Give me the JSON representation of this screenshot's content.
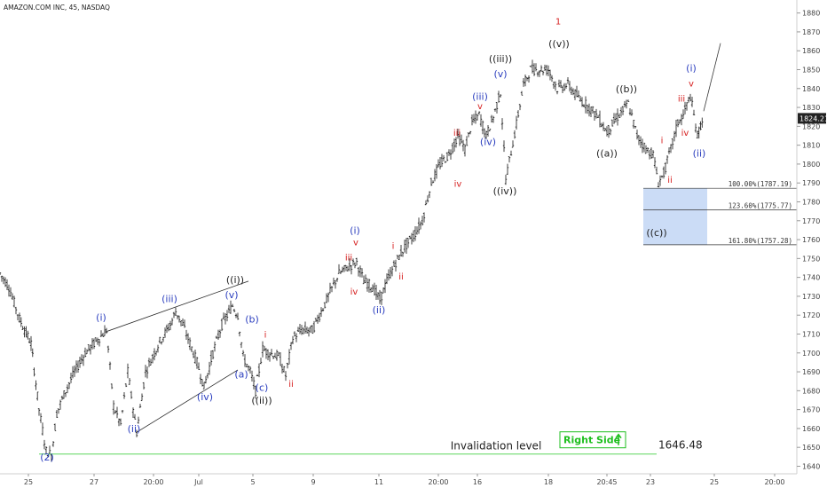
{
  "header": {
    "title": "AMAZON.COM INC, 45, NASDAQ"
  },
  "chart_data": {
    "type": "candlestick",
    "y_axis": {
      "ylim": [
        1636,
        1885
      ],
      "ticks": [
        1640,
        1650,
        1660,
        1670,
        1680,
        1690,
        1700,
        1710,
        1720,
        1730,
        1740,
        1750,
        1760,
        1770,
        1780,
        1790,
        1800,
        1810,
        1820,
        1830,
        1840,
        1850,
        1860,
        1870,
        1880
      ]
    },
    "x_axis": {
      "labels": [
        "25",
        "27",
        "20:00",
        "Jul",
        "5",
        "9",
        "11",
        "20:00",
        "16",
        "18",
        "20:45",
        "23",
        "25",
        "20:00"
      ],
      "label_x": [
        32,
        106,
        173,
        224,
        285,
        353,
        427,
        494,
        538,
        618,
        684,
        733,
        805,
        873
      ]
    },
    "last_price": "1824.21",
    "last_price_value": 1824.21,
    "price_path": [
      [
        0,
        1742
      ],
      [
        10,
        1735
      ],
      [
        22,
        1718
      ],
      [
        35,
        1705
      ],
      [
        44,
        1670
      ],
      [
        52,
        1648
      ],
      [
        58,
        1646
      ],
      [
        64,
        1668
      ],
      [
        72,
        1678
      ],
      [
        84,
        1690
      ],
      [
        96,
        1700
      ],
      [
        112,
        1708
      ],
      [
        120,
        1712
      ],
      [
        128,
        1672
      ],
      [
        136,
        1662
      ],
      [
        144,
        1690
      ],
      [
        154,
        1658
      ],
      [
        164,
        1690
      ],
      [
        180,
        1706
      ],
      [
        192,
        1715
      ],
      [
        198,
        1722
      ],
      [
        206,
        1715
      ],
      [
        214,
        1705
      ],
      [
        222,
        1695
      ],
      [
        230,
        1682
      ],
      [
        240,
        1700
      ],
      [
        250,
        1715
      ],
      [
        262,
        1725
      ],
      [
        268,
        1720
      ],
      [
        274,
        1698
      ],
      [
        282,
        1690
      ],
      [
        288,
        1680
      ],
      [
        296,
        1702
      ],
      [
        304,
        1700
      ],
      [
        314,
        1698
      ],
      [
        322,
        1688
      ],
      [
        330,
        1708
      ],
      [
        340,
        1712
      ],
      [
        352,
        1712
      ],
      [
        362,
        1722
      ],
      [
        372,
        1732
      ],
      [
        382,
        1742
      ],
      [
        394,
        1746
      ],
      [
        402,
        1748
      ],
      [
        410,
        1738
      ],
      [
        420,
        1735
      ],
      [
        428,
        1728
      ],
      [
        436,
        1738
      ],
      [
        446,
        1748
      ],
      [
        456,
        1756
      ],
      [
        466,
        1762
      ],
      [
        476,
        1770
      ],
      [
        486,
        1790
      ],
      [
        496,
        1800
      ],
      [
        506,
        1805
      ],
      [
        516,
        1815
      ],
      [
        524,
        1808
      ],
      [
        532,
        1822
      ],
      [
        540,
        1826
      ],
      [
        548,
        1815
      ],
      [
        556,
        1825
      ],
      [
        564,
        1838
      ],
      [
        570,
        1792
      ],
      [
        580,
        1816
      ],
      [
        590,
        1842
      ],
      [
        598,
        1850
      ],
      [
        608,
        1850
      ],
      [
        618,
        1850
      ],
      [
        628,
        1840
      ],
      [
        640,
        1842
      ],
      [
        652,
        1835
      ],
      [
        664,
        1830
      ],
      [
        674,
        1825
      ],
      [
        684,
        1817
      ],
      [
        696,
        1825
      ],
      [
        708,
        1832
      ],
      [
        718,
        1815
      ],
      [
        728,
        1808
      ],
      [
        736,
        1805
      ],
      [
        742,
        1790
      ],
      [
        748,
        1795
      ],
      [
        756,
        1808
      ],
      [
        764,
        1822
      ],
      [
        770,
        1826
      ],
      [
        778,
        1836
      ],
      [
        786,
        1815
      ],
      [
        793,
        1826
      ]
    ],
    "projection": [
      [
        793,
        1828
      ],
      [
        812,
        1864
      ]
    ],
    "wave_labels": [
      {
        "text": "(2)",
        "x": 53,
        "y": 1643,
        "color": "blue"
      },
      {
        "text": "(i)",
        "x": 114,
        "y": 1717,
        "color": "blue"
      },
      {
        "text": "(ii)",
        "x": 151,
        "y": 1658,
        "color": "blue"
      },
      {
        "text": "(iii)",
        "x": 191,
        "y": 1727,
        "color": "blue"
      },
      {
        "text": "(iv)",
        "x": 231,
        "y": 1675,
        "color": "blue"
      },
      {
        "text": "(v)",
        "x": 261,
        "y": 1729,
        "color": "blue"
      },
      {
        "text": "((i))",
        "x": 265,
        "y": 1737,
        "color": "black"
      },
      {
        "text": "(a)",
        "x": 272,
        "y": 1687,
        "color": "blue"
      },
      {
        "text": "(b)",
        "x": 284,
        "y": 1716,
        "color": "blue"
      },
      {
        "text": "(c)",
        "x": 295,
        "y": 1680,
        "color": "blue"
      },
      {
        "text": "((ii))",
        "x": 295,
        "y": 1673,
        "color": "black"
      },
      {
        "text": "(i)",
        "x": 400,
        "y": 1763,
        "color": "blue"
      },
      {
        "text": "(ii)",
        "x": 427,
        "y": 1721,
        "color": "blue"
      },
      {
        "text": "(iii)",
        "x": 541,
        "y": 1834,
        "color": "blue"
      },
      {
        "text": "(iv)",
        "x": 550,
        "y": 1810,
        "color": "blue"
      },
      {
        "text": "(v)",
        "x": 564,
        "y": 1846,
        "color": "blue"
      },
      {
        "text": "((iii))",
        "x": 564,
        "y": 1854,
        "color": "black"
      },
      {
        "text": "((iv))",
        "x": 569,
        "y": 1784,
        "color": "black"
      },
      {
        "text": "((v))",
        "x": 630,
        "y": 1862,
        "color": "black"
      },
      {
        "text": "((b))",
        "x": 706,
        "y": 1838,
        "color": "black"
      },
      {
        "text": "((a))",
        "x": 684,
        "y": 1804,
        "color": "black"
      },
      {
        "text": "((c))",
        "x": 740,
        "y": 1762,
        "color": "black"
      },
      {
        "text": "(i)",
        "x": 779,
        "y": 1849,
        "color": "blue"
      },
      {
        "text": "(ii)",
        "x": 788,
        "y": 1804,
        "color": "blue"
      },
      {
        "text": "i",
        "x": 299,
        "y": 1708,
        "color": "red"
      },
      {
        "text": "ii",
        "x": 328,
        "y": 1682,
        "color": "red"
      },
      {
        "text": "iii",
        "x": 393,
        "y": 1749,
        "color": "red"
      },
      {
        "text": "iv",
        "x": 399,
        "y": 1731,
        "color": "red"
      },
      {
        "text": "v",
        "x": 401,
        "y": 1757,
        "color": "red"
      },
      {
        "text": "i",
        "x": 443,
        "y": 1755,
        "color": "red"
      },
      {
        "text": "ii",
        "x": 452,
        "y": 1739,
        "color": "red"
      },
      {
        "text": "iii",
        "x": 515,
        "y": 1815,
        "color": "red"
      },
      {
        "text": "iv",
        "x": 516,
        "y": 1788,
        "color": "red"
      },
      {
        "text": "v",
        "x": 541,
        "y": 1829,
        "color": "red"
      },
      {
        "text": "1",
        "x": 629,
        "y": 1874,
        "color": "red"
      },
      {
        "text": "i",
        "x": 746,
        "y": 1811,
        "color": "red"
      },
      {
        "text": "ii",
        "x": 755,
        "y": 1790,
        "color": "red"
      },
      {
        "text": "iii",
        "x": 768,
        "y": 1833,
        "color": "red"
      },
      {
        "text": "iv",
        "x": 772,
        "y": 1815,
        "color": "red"
      },
      {
        "text": "v",
        "x": 779,
        "y": 1841,
        "color": "red"
      }
    ],
    "channel_lines": [
      {
        "x1": 118,
        "y1": 1711,
        "x2": 280,
        "y2": 1738
      },
      {
        "x1": 154,
        "y1": 1658,
        "x2": 268,
        "y2": 1691
      }
    ],
    "fib_levels": [
      {
        "label": "100.00%(1787.19)",
        "value": 1787.19
      },
      {
        "label": "123.60%(1775.77)",
        "value": 1775.77
      },
      {
        "label": "161.80%(1757.28)",
        "value": 1757.28
      }
    ],
    "fib_box": {
      "x_start": 725,
      "x_end": 797,
      "top": 1787.19,
      "bottom": 1757.28,
      "color": "#a9c4f0"
    },
    "invalidation": {
      "label": "Invalidation level",
      "value": 1646.48,
      "value_text": "1646.48",
      "right_side_label": "Right Side",
      "line_color": "#5cd65c",
      "badge_color": "#1fbf1f"
    }
  }
}
